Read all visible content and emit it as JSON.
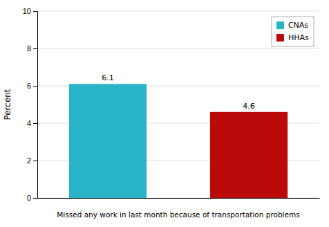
{
  "chart_data": {
    "type": "bar",
    "categories": [
      "CNAs",
      "HHAs"
    ],
    "values": [
      6.1,
      4.6
    ],
    "colors": [
      "#29b4c8",
      "#bb0a0a"
    ],
    "xlabel": "Missed any work in last month because of transportation problems",
    "ylabel": "Percent",
    "ylim": [
      0,
      10
    ],
    "yticks": [
      0,
      2,
      4,
      6,
      8,
      10
    ],
    "grid": true,
    "legend": "upper right",
    "data_labels": true,
    "tick_labels": "y"
  }
}
